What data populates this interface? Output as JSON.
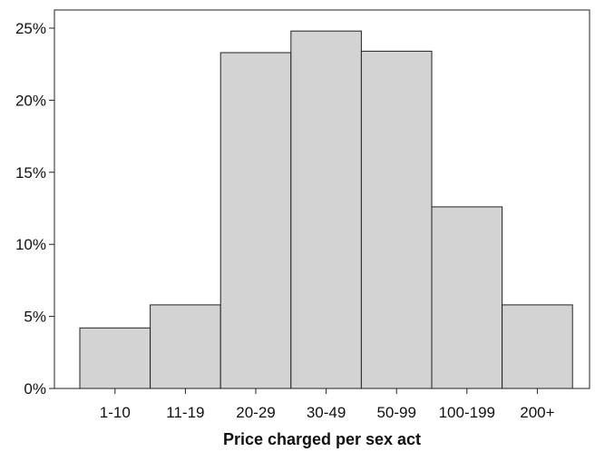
{
  "chart_data": {
    "type": "bar",
    "title": "",
    "xlabel": "Price charged per sex act",
    "ylabel": "",
    "categories": [
      "1-10",
      "11-19",
      "20-29",
      "30-49",
      "50-99",
      "100-199",
      "200+"
    ],
    "values": [
      4.2,
      5.8,
      23.3,
      24.8,
      23.4,
      12.6,
      5.8
    ],
    "value_unit": "%",
    "ylim": [
      0,
      25.5
    ],
    "yticks": [
      0,
      5,
      10,
      15,
      20,
      25
    ],
    "ytick_labels": [
      "0%",
      "5%",
      "10%",
      "15%",
      "20%",
      "25%"
    ],
    "grid": false,
    "legend": "none",
    "bar_color": "#d3d3d3",
    "edge_color": "#222222"
  }
}
